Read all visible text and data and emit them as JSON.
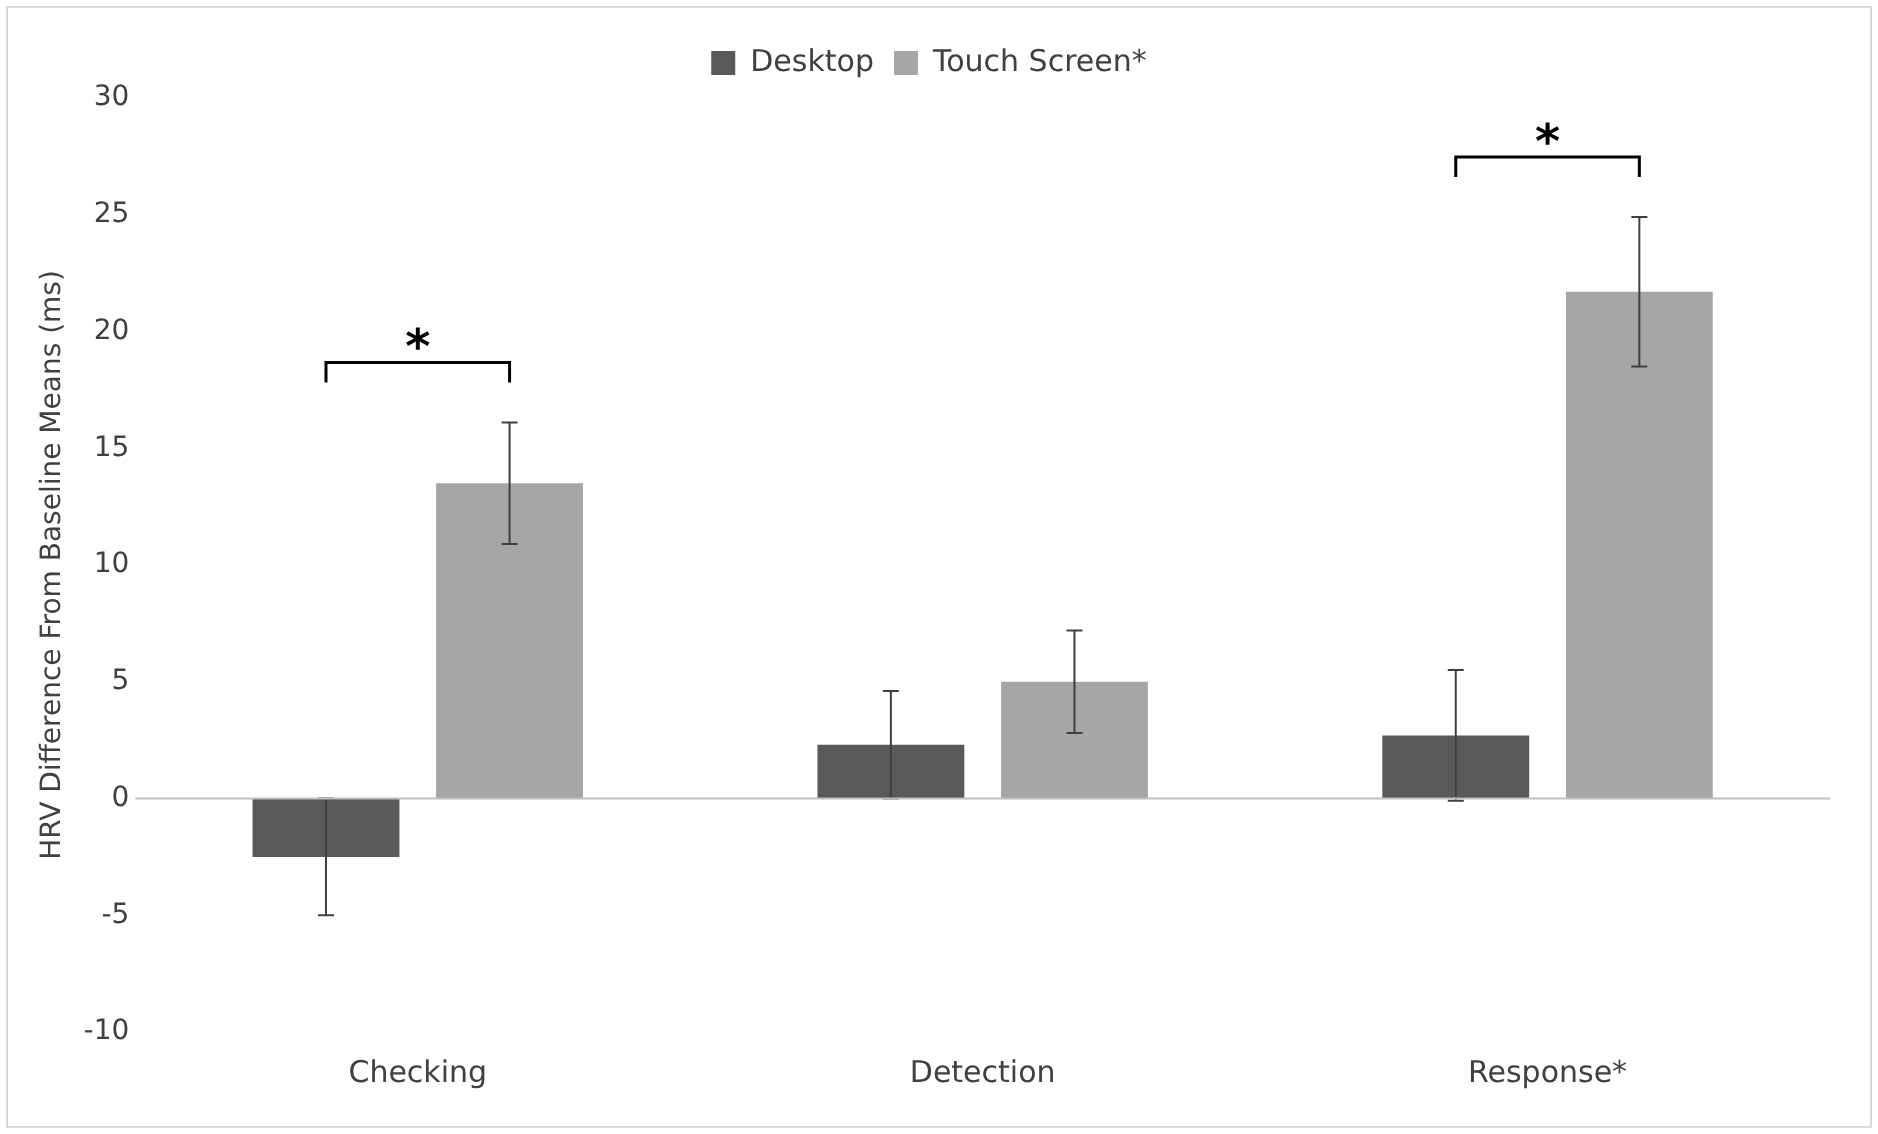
{
  "chart_data": {
    "type": "bar",
    "ylabel": "HRV Difference From Baseline Means (ms)",
    "categories": [
      "Checking",
      "Detection",
      "Response*"
    ],
    "series": [
      {
        "name": "Desktop",
        "color": "#595959",
        "values": [
          -2.5,
          2.3,
          2.7
        ],
        "errors": [
          2.5,
          2.3,
          2.8
        ]
      },
      {
        "name": "Touch Screen*",
        "color": "#a6a6a6",
        "values": [
          13.5,
          5.0,
          21.7
        ],
        "errors": [
          2.6,
          2.2,
          3.2
        ]
      }
    ],
    "ylim": [
      -10,
      30
    ],
    "yticks": [
      -10,
      -5,
      0,
      5,
      10,
      15,
      20,
      25,
      30
    ],
    "legend": "top",
    "annotations": [
      "*",
      "*"
    ]
  }
}
